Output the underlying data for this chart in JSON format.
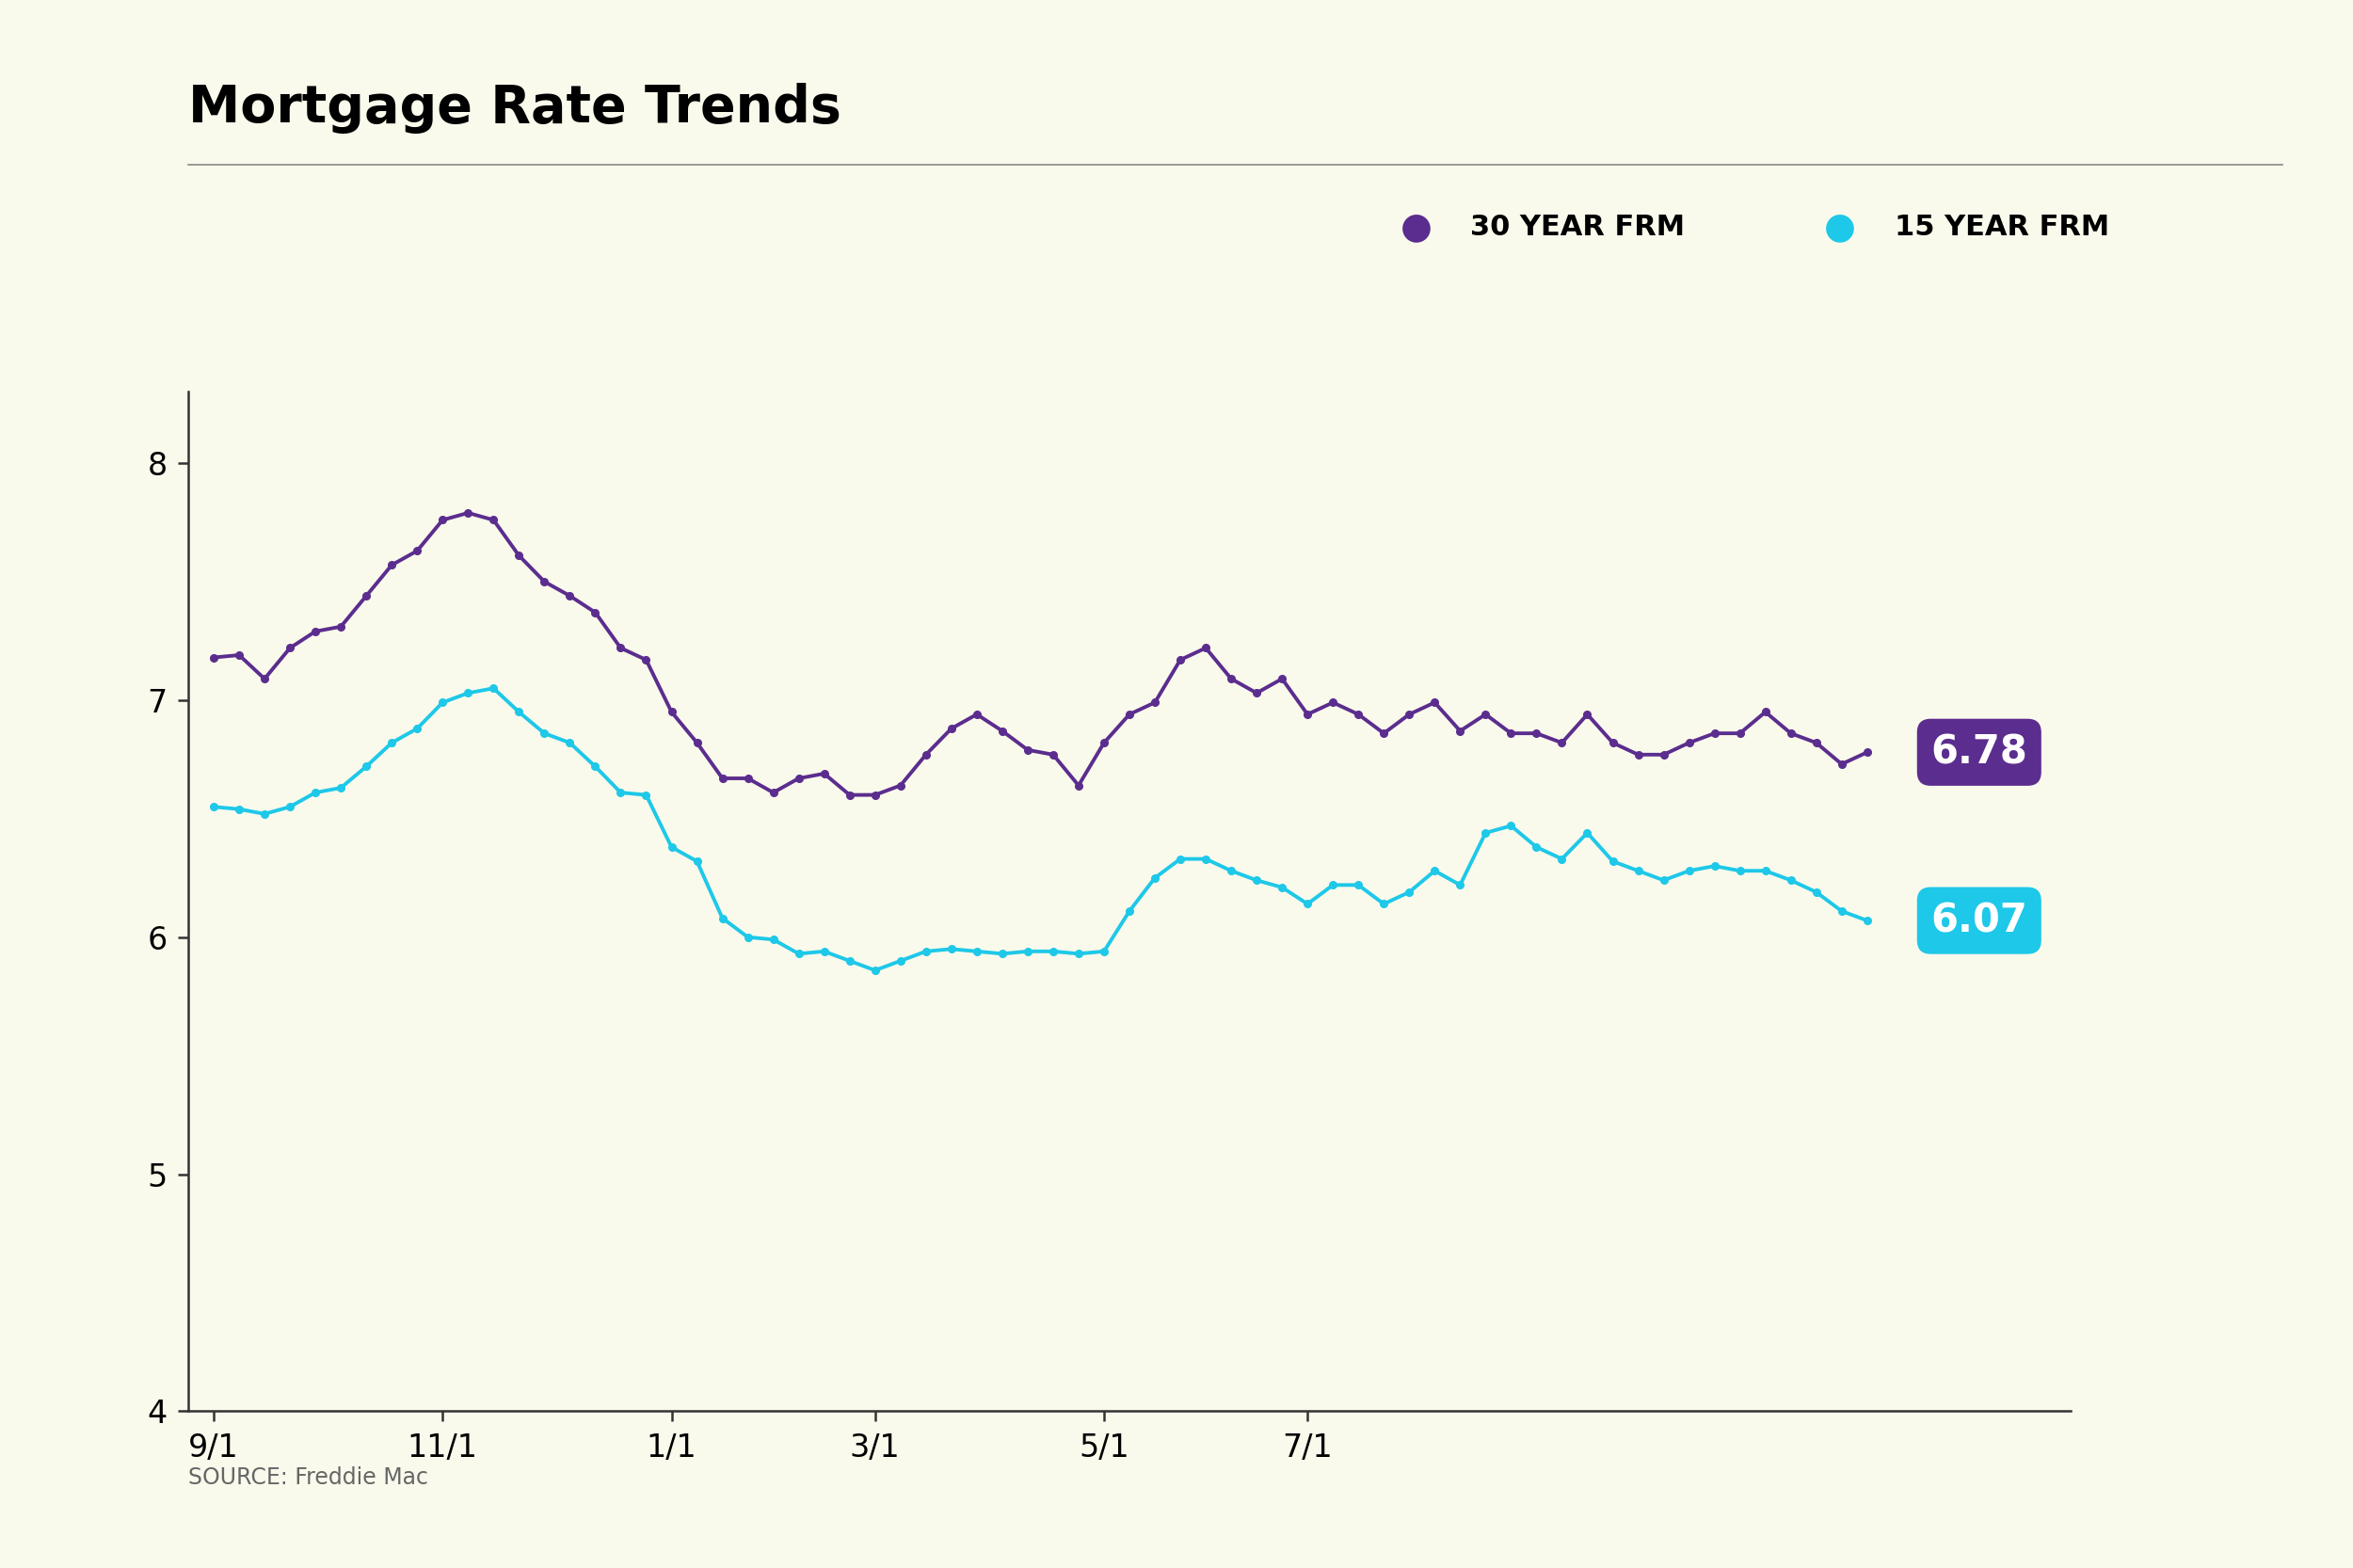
{
  "title": "Mortgage Rate Trends",
  "source": "SOURCE: Freddie Mac",
  "background_color": "#FAFAEC",
  "line_30yr_color": "#5B2D8E",
  "line_15yr_color": "#1EC8E8",
  "end_label_30yr": "6.78",
  "end_label_15yr": "6.07",
  "end_label_30yr_bg": "#5B2D8E",
  "end_label_15yr_bg": "#1EC8E8",
  "ylim": [
    4,
    8.3
  ],
  "yticks": [
    4,
    5,
    6,
    7,
    8
  ],
  "legend_label_30yr": "30 YEAR FRM",
  "legend_label_15yr": "15 YEAR FRM",
  "x_tick_labels": [
    "9/1",
    "11/1",
    "1/1",
    "3/1",
    "5/1",
    "7/1"
  ],
  "x_tick_positions": [
    0,
    9,
    18,
    26,
    35,
    43
  ],
  "xlim": [
    -1,
    70
  ],
  "data_30yr": [
    7.18,
    7.19,
    7.09,
    7.22,
    7.29,
    7.31,
    7.44,
    7.57,
    7.63,
    7.76,
    7.79,
    7.76,
    7.61,
    7.5,
    7.44,
    7.37,
    7.22,
    7.17,
    6.95,
    6.82,
    6.67,
    6.67,
    6.61,
    6.67,
    6.69,
    6.6,
    6.6,
    6.64,
    6.77,
    6.88,
    6.94,
    6.87,
    6.79,
    6.77,
    6.64,
    6.82,
    6.94,
    6.99,
    7.17,
    7.22,
    7.09,
    7.03,
    7.09,
    6.94,
    6.99,
    6.94,
    6.86,
    6.94,
    6.99,
    6.87,
    6.94,
    6.86,
    6.86,
    6.82,
    6.94,
    6.82,
    6.77,
    6.77,
    6.82,
    6.86,
    6.86,
    6.95,
    6.86,
    6.82,
    6.73,
    6.78
  ],
  "data_15yr": [
    6.55,
    6.54,
    6.52,
    6.55,
    6.61,
    6.63,
    6.72,
    6.82,
    6.88,
    6.99,
    7.03,
    7.05,
    6.95,
    6.86,
    6.82,
    6.72,
    6.61,
    6.6,
    6.38,
    6.32,
    6.08,
    6.0,
    5.99,
    5.93,
    5.94,
    5.9,
    5.86,
    5.9,
    5.94,
    5.95,
    5.94,
    5.93,
    5.94,
    5.94,
    5.93,
    5.94,
    6.11,
    6.25,
    6.33,
    6.33,
    6.28,
    6.24,
    6.21,
    6.14,
    6.22,
    6.22,
    6.14,
    6.19,
    6.28,
    6.22,
    6.44,
    6.47,
    6.38,
    6.33,
    6.44,
    6.32,
    6.28,
    6.24,
    6.28,
    6.3,
    6.28,
    6.28,
    6.24,
    6.19,
    6.11,
    6.07
  ]
}
